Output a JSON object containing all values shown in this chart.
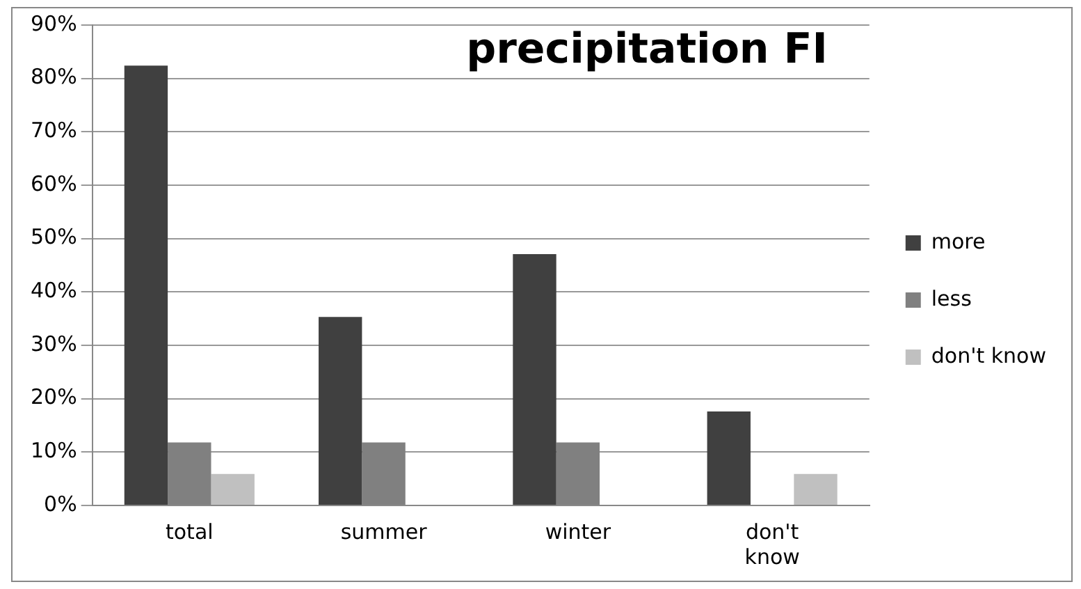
{
  "chart_data": {
    "type": "bar",
    "title": "precipitation FI",
    "categories": [
      "total",
      "summer",
      "winter",
      "don't know"
    ],
    "series": [
      {
        "name": "more",
        "color": "#404040",
        "values": [
          82.4,
          35.3,
          47.1,
          17.6
        ]
      },
      {
        "name": "less",
        "color": "#808080",
        "values": [
          11.8,
          11.8,
          11.8,
          0
        ]
      },
      {
        "name": "don't know",
        "color": "#c0c0c0",
        "values": [
          5.9,
          0,
          0,
          5.9
        ]
      }
    ],
    "ylim": [
      0,
      90
    ],
    "yticks": [
      {
        "value": 0,
        "label": "0%"
      },
      {
        "value": 10,
        "label": "10%"
      },
      {
        "value": 20,
        "label": "20%"
      },
      {
        "value": 30,
        "label": "30%"
      },
      {
        "value": 40,
        "label": "40%"
      },
      {
        "value": 50,
        "label": "50%"
      },
      {
        "value": 60,
        "label": "60%"
      },
      {
        "value": 70,
        "label": "70%"
      },
      {
        "value": 80,
        "label": "80%"
      },
      {
        "value": 90,
        "label": "90%"
      }
    ],
    "grid": "y",
    "legend": "right"
  }
}
